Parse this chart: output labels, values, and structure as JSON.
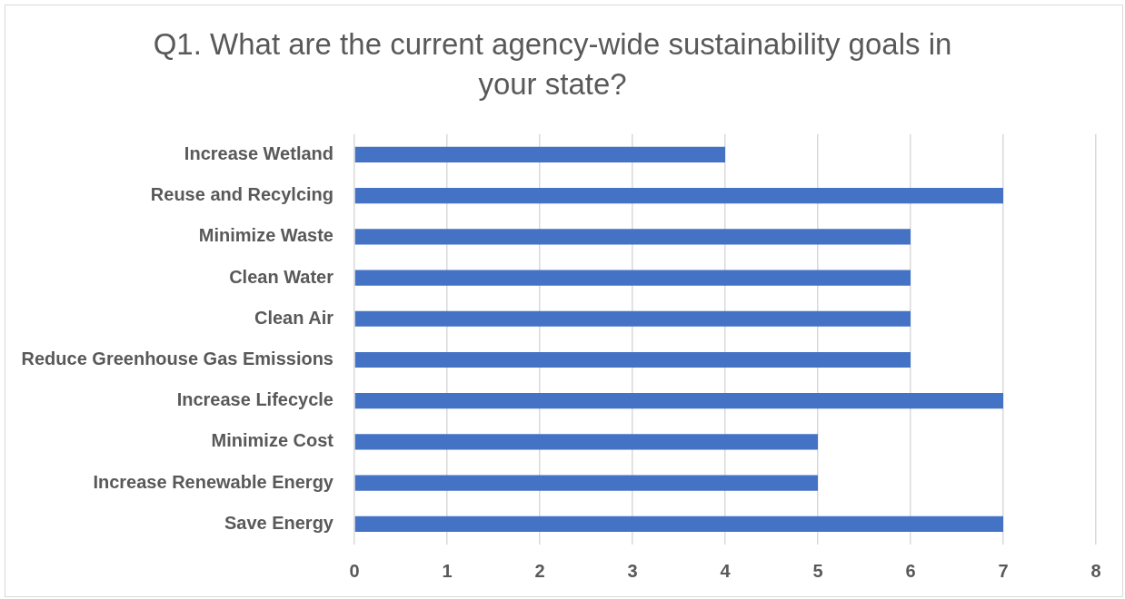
{
  "chart_data": {
    "type": "bar",
    "orientation": "horizontal",
    "title": "Q1. What are the current agency-wide sustainability goals in your state?",
    "categories": [
      "Increase Wetland",
      "Reuse and Recylcing",
      "Minimize Waste",
      "Clean Water",
      "Clean Air",
      "Reduce Greenhouse Gas Emissions",
      "Increase Lifecycle",
      "Minimize Cost",
      "Increase Renewable Energy",
      "Save Energy"
    ],
    "values": [
      4,
      7,
      6,
      6,
      6,
      6,
      7,
      5,
      5,
      7
    ],
    "color": "#4472c4",
    "xlim": [
      0,
      8
    ],
    "xticks": [
      0,
      1,
      2,
      3,
      4,
      5,
      6,
      7,
      8
    ],
    "grid": "x"
  }
}
